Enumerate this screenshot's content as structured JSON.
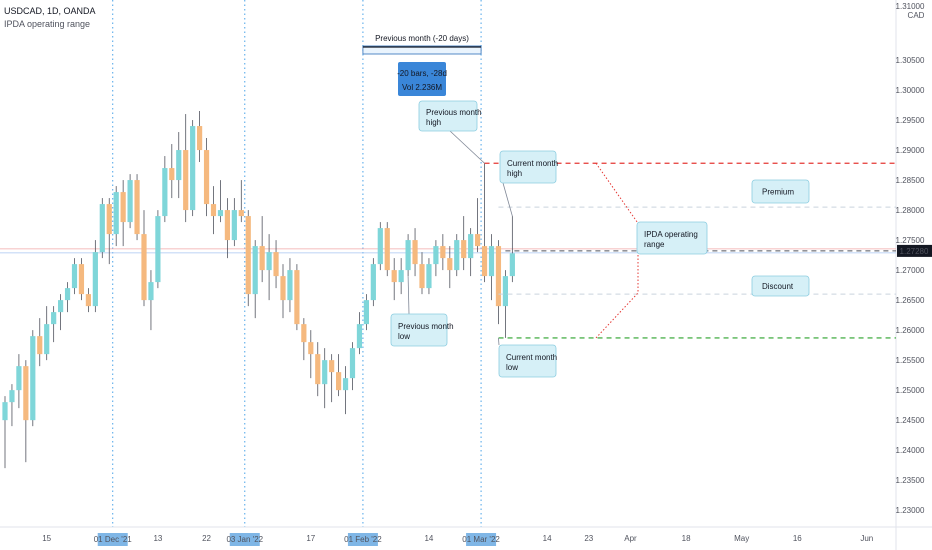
{
  "header": {
    "symbol": "USDCAD, 1D, OANDA",
    "indicator": "IPDA operating range"
  },
  "colors": {
    "up": "#7fd6d9",
    "down": "#f5b97f",
    "premium_line": "#e53935",
    "discount_line": "#2aa22a",
    "price_badge": "#131722",
    "date_badge": "#7fb6e6",
    "callout_fill": "#d6f0f7",
    "callout_border": "#8ccde0",
    "measure_fill": "#3a86d8"
  },
  "chart_data": {
    "type": "candlestick",
    "symbol": "USDCAD",
    "timeframe": "1D",
    "ylim": [
      1.2272,
      1.314
    ],
    "y_ticks": [
      "1.30500",
      "1.30000",
      "1.29500",
      "1.29000",
      "1.28500",
      "1.28000",
      "1.27500",
      "1.27000",
      "1.26500",
      "1.26000",
      "1.25500",
      "1.25000",
      "1.24500",
      "1.24000",
      "1.23500",
      "1.23000"
    ],
    "y_axis_unit_top": "1.31000",
    "y_axis_unit": "CAD",
    "current_price": "1.27280",
    "x_ticks": [
      {
        "label": "15",
        "i": 6
      },
      {
        "label": "13",
        "i": 22
      },
      {
        "label": "22",
        "i": 29
      },
      {
        "label": "17",
        "i": 44
      },
      {
        "label": "14",
        "i": 61
      },
      {
        "label": "14",
        "i": 78
      },
      {
        "label": "23",
        "i": 84
      },
      {
        "label": "Apr",
        "i": 90
      },
      {
        "label": "18",
        "i": 98
      },
      {
        "label": "May",
        "i": 106
      },
      {
        "label": "16",
        "i": 114
      },
      {
        "label": "Jun",
        "i": 124
      }
    ],
    "month_markers": [
      {
        "label": "01 Dec '21",
        "i": 16
      },
      {
        "label": "03 Jan '22",
        "i": 35
      },
      {
        "label": "01 Feb '22",
        "i": 52
      },
      {
        "label": "01 Mar '22",
        "i": 69
      }
    ],
    "candles": [
      [
        1.245,
        1.249,
        1.237,
        1.248
      ],
      [
        1.248,
        1.251,
        1.244,
        1.25
      ],
      [
        1.25,
        1.256,
        1.247,
        1.254
      ],
      [
        1.254,
        1.255,
        1.238,
        1.245
      ],
      [
        1.245,
        1.26,
        1.244,
        1.259
      ],
      [
        1.259,
        1.262,
        1.254,
        1.256
      ],
      [
        1.256,
        1.264,
        1.255,
        1.261
      ],
      [
        1.261,
        1.264,
        1.258,
        1.263
      ],
      [
        1.263,
        1.266,
        1.26,
        1.265
      ],
      [
        1.265,
        1.268,
        1.263,
        1.267
      ],
      [
        1.267,
        1.272,
        1.266,
        1.271
      ],
      [
        1.271,
        1.272,
        1.265,
        1.266
      ],
      [
        1.266,
        1.267,
        1.263,
        1.264
      ],
      [
        1.264,
        1.275,
        1.263,
        1.273
      ],
      [
        1.273,
        1.282,
        1.272,
        1.281
      ],
      [
        1.281,
        1.282,
        1.271,
        1.276
      ],
      [
        1.276,
        1.284,
        1.274,
        1.283
      ],
      [
        1.283,
        1.285,
        1.274,
        1.278
      ],
      [
        1.278,
        1.286,
        1.277,
        1.285
      ],
      [
        1.285,
        1.286,
        1.275,
        1.276
      ],
      [
        1.276,
        1.28,
        1.264,
        1.265
      ],
      [
        1.265,
        1.27,
        1.26,
        1.268
      ],
      [
        1.268,
        1.28,
        1.267,
        1.279
      ],
      [
        1.279,
        1.289,
        1.278,
        1.287
      ],
      [
        1.287,
        1.291,
        1.282,
        1.285
      ],
      [
        1.285,
        1.293,
        1.282,
        1.29
      ],
      [
        1.29,
        1.296,
        1.278,
        1.28
      ],
      [
        1.28,
        1.295,
        1.279,
        1.294
      ],
      [
        1.294,
        1.2965,
        1.288,
        1.29
      ],
      [
        1.29,
        1.292,
        1.279,
        1.281
      ],
      [
        1.281,
        1.284,
        1.276,
        1.279
      ],
      [
        1.279,
        1.285,
        1.278,
        1.28
      ],
      [
        1.28,
        1.282,
        1.272,
        1.275
      ],
      [
        1.275,
        1.282,
        1.274,
        1.28
      ],
      [
        1.28,
        1.285,
        1.278,
        1.279
      ],
      [
        1.279,
        1.28,
        1.264,
        1.266
      ],
      [
        1.266,
        1.275,
        1.262,
        1.274
      ],
      [
        1.274,
        1.279,
        1.268,
        1.27
      ],
      [
        1.27,
        1.276,
        1.265,
        1.273
      ],
      [
        1.273,
        1.275,
        1.267,
        1.269
      ],
      [
        1.269,
        1.271,
        1.262,
        1.265
      ],
      [
        1.265,
        1.272,
        1.263,
        1.27
      ],
      [
        1.27,
        1.271,
        1.26,
        1.261
      ],
      [
        1.261,
        1.262,
        1.255,
        1.258
      ],
      [
        1.258,
        1.26,
        1.252,
        1.256
      ],
      [
        1.256,
        1.258,
        1.249,
        1.251
      ],
      [
        1.251,
        1.257,
        1.247,
        1.255
      ],
      [
        1.255,
        1.256,
        1.248,
        1.253
      ],
      [
        1.253,
        1.256,
        1.249,
        1.25
      ],
      [
        1.25,
        1.254,
        1.246,
        1.252
      ],
      [
        1.252,
        1.258,
        1.25,
        1.257
      ],
      [
        1.257,
        1.263,
        1.256,
        1.261
      ],
      [
        1.261,
        1.266,
        1.26,
        1.265
      ],
      [
        1.265,
        1.272,
        1.264,
        1.271
      ],
      [
        1.271,
        1.278,
        1.27,
        1.277
      ],
      [
        1.277,
        1.278,
        1.269,
        1.27
      ],
      [
        1.27,
        1.272,
        1.265,
        1.268
      ],
      [
        1.268,
        1.272,
        1.266,
        1.27
      ],
      [
        1.27,
        1.276,
        1.269,
        1.275
      ],
      [
        1.275,
        1.277,
        1.269,
        1.271
      ],
      [
        1.271,
        1.273,
        1.266,
        1.267
      ],
      [
        1.267,
        1.272,
        1.266,
        1.271
      ],
      [
        1.271,
        1.275,
        1.269,
        1.274
      ],
      [
        1.274,
        1.276,
        1.27,
        1.272
      ],
      [
        1.272,
        1.274,
        1.267,
        1.27
      ],
      [
        1.27,
        1.276,
        1.269,
        1.275
      ],
      [
        1.275,
        1.279,
        1.27,
        1.272
      ],
      [
        1.272,
        1.277,
        1.269,
        1.276
      ],
      [
        1.276,
        1.282,
        1.273,
        1.274
      ],
      [
        1.274,
        1.2878,
        1.268,
        1.269
      ],
      [
        1.269,
        1.276,
        1.265,
        1.274
      ],
      [
        1.274,
        1.275,
        1.261,
        1.264
      ],
      [
        1.264,
        1.27,
        1.2587,
        1.269
      ],
      [
        1.269,
        1.279,
        1.268,
        1.2728
      ]
    ],
    "levels": {
      "premium_line": 1.2878,
      "equilibrium": 1.2732,
      "discount_line": 1.2587,
      "premium_mid": 1.2805,
      "discount_mid": 1.266
    },
    "annotations": {
      "previous_month_range": "Previous month (-20 days)",
      "measure_line1": "-20 bars, -28d",
      "measure_line2": "Vol 2.236M",
      "prev_high_line1": "Previous month",
      "prev_high_line2": "high",
      "prev_low_line1": "Previous month",
      "prev_low_line2": "low",
      "cur_high_line1": "Current month",
      "cur_high_line2": "high",
      "cur_low_line1": "Current month",
      "cur_low_line2": "low",
      "premium": "Premium",
      "discount": "Discount",
      "ipda_line1": "IPDA operating",
      "ipda_line2": "range"
    }
  }
}
